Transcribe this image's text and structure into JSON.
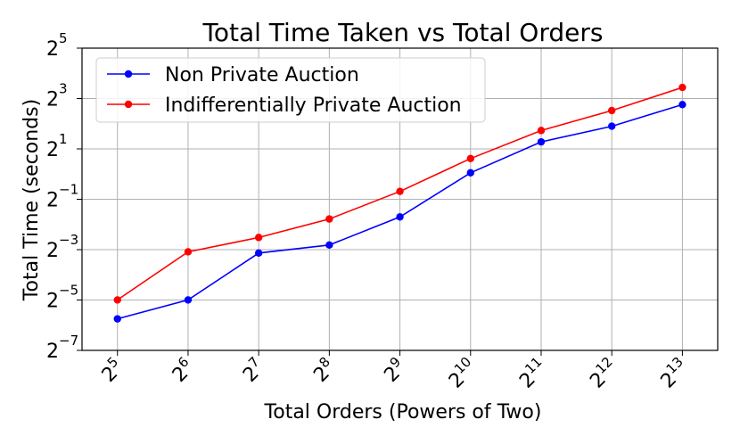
{
  "chart_data": {
    "type": "line",
    "title": "Total Time Taken vs Total Orders",
    "xlabel": "Total Orders (Powers of Two)",
    "ylabel": "Total Time (seconds)",
    "x_scale": "log2",
    "y_scale": "log2",
    "x": [
      32,
      64,
      128,
      256,
      512,
      1024,
      2048,
      4096,
      8192
    ],
    "x_tick_labels": [
      {
        "base": "2",
        "exp": "5"
      },
      {
        "base": "2",
        "exp": "6"
      },
      {
        "base": "2",
        "exp": "7"
      },
      {
        "base": "2",
        "exp": "8"
      },
      {
        "base": "2",
        "exp": "9"
      },
      {
        "base": "2",
        "exp": "10"
      },
      {
        "base": "2",
        "exp": "11"
      },
      {
        "base": "2",
        "exp": "12"
      },
      {
        "base": "2",
        "exp": "13"
      }
    ],
    "y_tick_labels": [
      {
        "base": "2",
        "exp": "5",
        "value": 32
      },
      {
        "base": "2",
        "exp": "3",
        "value": 8
      },
      {
        "base": "2",
        "exp": "1",
        "value": 2
      },
      {
        "base": "2",
        "exp": "−1",
        "value": 0.5
      },
      {
        "base": "2",
        "exp": "−3",
        "value": 0.125
      },
      {
        "base": "2",
        "exp": "−5",
        "value": 0.03125
      },
      {
        "base": "2",
        "exp": "−7",
        "value": 0.0078125
      }
    ],
    "ylim": [
      0.0078125,
      32
    ],
    "xlim": [
      22.6,
      11585
    ],
    "grid": true,
    "legend_position": "top-left",
    "series": [
      {
        "name": "Non Private Auction",
        "color": "#0000ff",
        "values": [
          0.0186,
          0.0313,
          0.1139,
          0.1419,
          0.3078,
          1.0352,
          2.4253,
          3.7321,
          6.7735
        ]
      },
      {
        "name": "Indifferentially Private Auction",
        "color": "#ff0000",
        "values": [
          0.0313,
          0.1177,
          0.1746,
          0.2905,
          0.6209,
          1.5334,
          3.3175,
          5.7435,
          10.8571
        ]
      }
    ]
  }
}
